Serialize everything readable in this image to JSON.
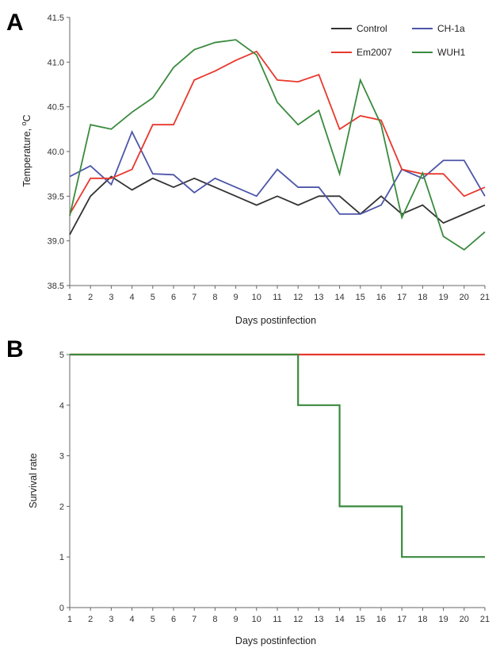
{
  "figure": {
    "panel_a_letter": "A",
    "panel_b_letter": "B"
  },
  "chart_data": [
    {
      "type": "line",
      "panel": "A",
      "xlabel": "Days postinfection",
      "ylabel": "Temperature, ",
      "ylabel_superscript": "o",
      "ylabel_unit": "C",
      "x": [
        1,
        2,
        3,
        4,
        5,
        6,
        7,
        8,
        9,
        10,
        11,
        12,
        13,
        14,
        15,
        16,
        17,
        18,
        19,
        20,
        21
      ],
      "ylim": [
        38.5,
        41.5
      ],
      "yticks": [
        "38.5",
        "39.0",
        "39.5",
        "40.0",
        "40.5",
        "41.0",
        "41.5"
      ],
      "grid": false,
      "legend_position": "top-right",
      "series": [
        {
          "name": "Control",
          "color": "#333333",
          "values": [
            39.07,
            39.5,
            39.72,
            39.57,
            39.7,
            39.6,
            39.7,
            39.6,
            39.5,
            39.4,
            39.5,
            39.4,
            39.5,
            39.5,
            39.3,
            39.5,
            39.3,
            39.4,
            39.2,
            39.3,
            39.4
          ]
        },
        {
          "name": "CH-1a",
          "color": "#4d56a8",
          "values": [
            39.72,
            39.84,
            39.63,
            40.22,
            39.75,
            39.74,
            39.54,
            39.7,
            39.6,
            39.5,
            39.8,
            39.6,
            39.6,
            39.3,
            39.3,
            39.4,
            39.8,
            39.7,
            39.9,
            39.9,
            39.5
          ]
        },
        {
          "name": "Em2007",
          "color": "#e8382e",
          "values": [
            39.3,
            39.7,
            39.7,
            39.8,
            40.3,
            40.3,
            40.8,
            40.9,
            41.02,
            41.12,
            40.8,
            40.78,
            40.86,
            40.25,
            40.4,
            40.35,
            39.8,
            39.75,
            39.75,
            39.5,
            39.6
          ]
        },
        {
          "name": "WUH1",
          "color": "#3a8a3e",
          "values": [
            39.28,
            40.3,
            40.25,
            40.44,
            40.6,
            40.94,
            41.14,
            41.22,
            41.25,
            41.08,
            40.55,
            40.3,
            40.46,
            39.75,
            40.8,
            40.3,
            39.26,
            39.76,
            39.05,
            38.9,
            39.1
          ]
        }
      ]
    },
    {
      "type": "line",
      "panel": "B",
      "xlabel": "Days postinfection",
      "ylabel": "Survival rate",
      "x": [
        1,
        2,
        3,
        4,
        5,
        6,
        7,
        8,
        9,
        10,
        11,
        12,
        13,
        14,
        15,
        16,
        17,
        18,
        19,
        20,
        21
      ],
      "ylim": [
        0,
        5
      ],
      "yticks": [
        "0",
        "1",
        "2",
        "3",
        "4",
        "5"
      ],
      "grid": false,
      "step": true,
      "series": [
        {
          "color": "#e8382e",
          "values": [
            5,
            5,
            5,
            5,
            5,
            5,
            5,
            5,
            5,
            5,
            5,
            5,
            5,
            5,
            5,
            5,
            5,
            5,
            5,
            5,
            5
          ]
        },
        {
          "color": "#3a8a3e",
          "values": [
            5,
            5,
            5,
            5,
            5,
            5,
            5,
            5,
            5,
            5,
            5,
            4,
            4,
            2,
            2,
            2,
            1,
            1,
            1,
            1,
            1
          ]
        }
      ]
    }
  ]
}
